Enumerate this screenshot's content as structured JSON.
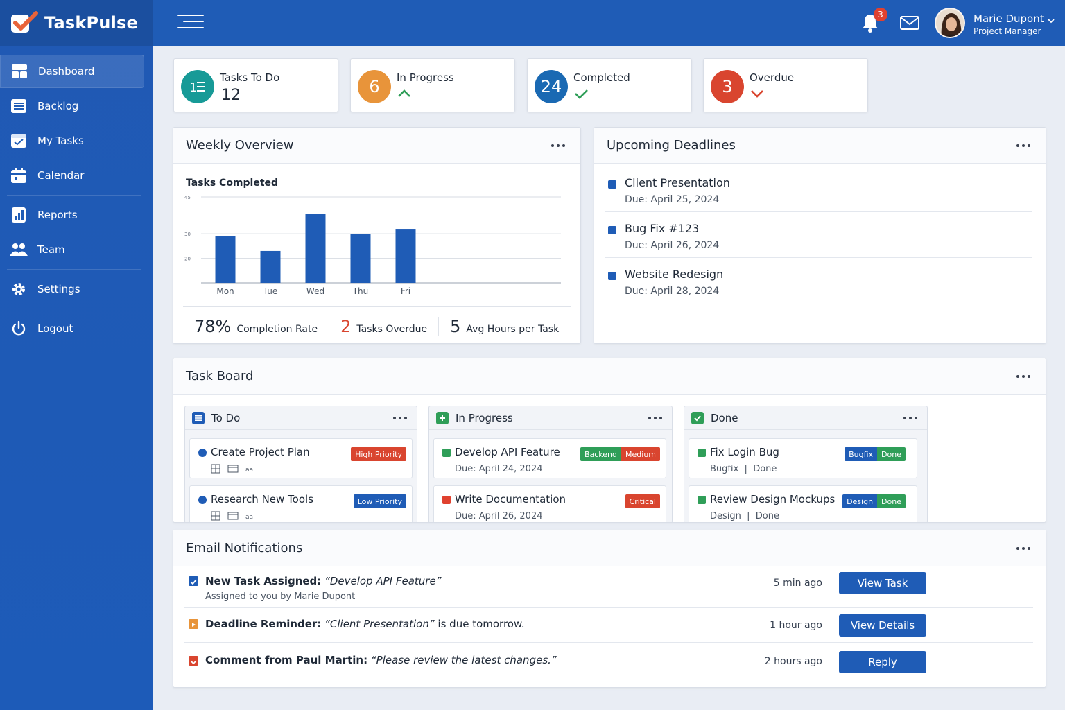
{
  "app": {
    "name": "TaskPulse"
  },
  "sidebar": {
    "items": [
      {
        "label": "Dashboard",
        "icon": "dashboard-icon"
      },
      {
        "label": "Backlog",
        "icon": "list-icon"
      },
      {
        "label": "My Tasks",
        "icon": "tasks-icon"
      },
      {
        "label": "Calendar",
        "icon": "calendar-icon"
      },
      {
        "label": "Reports",
        "icon": "reports-icon"
      },
      {
        "label": "Team",
        "icon": "team-icon"
      },
      {
        "label": "Settings",
        "icon": "gear-icon"
      },
      {
        "label": "Logout",
        "icon": "power-icon"
      }
    ]
  },
  "topbar": {
    "notifications_count": "3",
    "user_name": "Marie Dupont",
    "user_role": "Project Manager"
  },
  "stats": [
    {
      "label": "Tasks To Do",
      "value": "12",
      "icon": "todo-list-icon",
      "color": "#179a97"
    },
    {
      "label": "In Progress",
      "value": "6",
      "arrow": "up",
      "color": "#e8943a"
    },
    {
      "label": "Completed",
      "value": "24",
      "arrow": "check",
      "color": "#1a69b3"
    },
    {
      "label": "Overdue",
      "value": "3",
      "arrow": "down",
      "color": "#d9452f"
    }
  ],
  "weekly": {
    "title": "Weekly Overview",
    "kpis": [
      {
        "value": "78%",
        "label": "Completion Rate"
      },
      {
        "value": "2",
        "label": "Tasks Overdue"
      },
      {
        "value": "5",
        "label": "Avg Hours per Task"
      }
    ]
  },
  "chart_data": {
    "type": "bar",
    "title": "Tasks Completed",
    "categories": [
      "Mon",
      "Tue",
      "Wed",
      "Thu",
      "Fri"
    ],
    "values": [
      29,
      23,
      38,
      30,
      32
    ],
    "yticks": [
      20,
      30,
      45
    ],
    "ylim": [
      10,
      45
    ],
    "grid": true,
    "color": "#1f5cb6"
  },
  "deadlines": {
    "title": "Upcoming Deadlines",
    "items": [
      {
        "title": "Client Presentation",
        "due": "Due: April 25, 2024"
      },
      {
        "title": "Bug Fix #123",
        "due": "Due: April 26, 2024"
      },
      {
        "title": "Website Redesign",
        "due": "Due: April 28, 2024"
      }
    ]
  },
  "board": {
    "title": "Task Board",
    "columns": [
      {
        "title": "To Do",
        "cards": [
          {
            "title": "Create Project Plan",
            "tag": "High Priority",
            "tag_color": "#d9452f"
          },
          {
            "title": "Research New Tools",
            "tag": "Low Priority",
            "tag_color": "#1f5cb6"
          }
        ]
      },
      {
        "title": "In Progress",
        "cards": [
          {
            "title": "Develop API Feature",
            "sub": "Due: April 24, 2024",
            "tags": [
              "Backend",
              "Medium"
            ]
          },
          {
            "title": "Write Documentation",
            "sub": "Due: April 26, 2024",
            "tag": "Critical",
            "tag_color": "#d9452f"
          }
        ]
      },
      {
        "title": "Done",
        "cards": [
          {
            "title": "Fix Login Bug",
            "sub": "Bugfix  |  Done",
            "tags": [
              "Bugfix",
              "Done"
            ]
          },
          {
            "title": "Review Design Mockups",
            "sub": "Design  |  Done",
            "tags": [
              "Design",
              "Done"
            ]
          }
        ]
      }
    ]
  },
  "email": {
    "title": "Email Notifications",
    "items": [
      {
        "bold": "New Task Assigned:",
        "italic": "“Develop API Feature”",
        "rest": "",
        "sub": "Assigned to you by Marie Dupont",
        "time": "5 min ago",
        "button": "View Task",
        "color": "#1f5cb6"
      },
      {
        "bold": "Deadline Reminder:",
        "italic": "“Client Presentation”",
        "rest": " is due tomorrow.",
        "sub": "",
        "time": "1 hour ago",
        "button": "View Details",
        "color": "#e8943a"
      },
      {
        "bold": "Comment from Paul Martin:",
        "italic": "“Please review the latest changes.”",
        "rest": "",
        "sub": "",
        "time": "2 hours ago",
        "button": "Reply",
        "color": "#d9452f"
      }
    ]
  }
}
